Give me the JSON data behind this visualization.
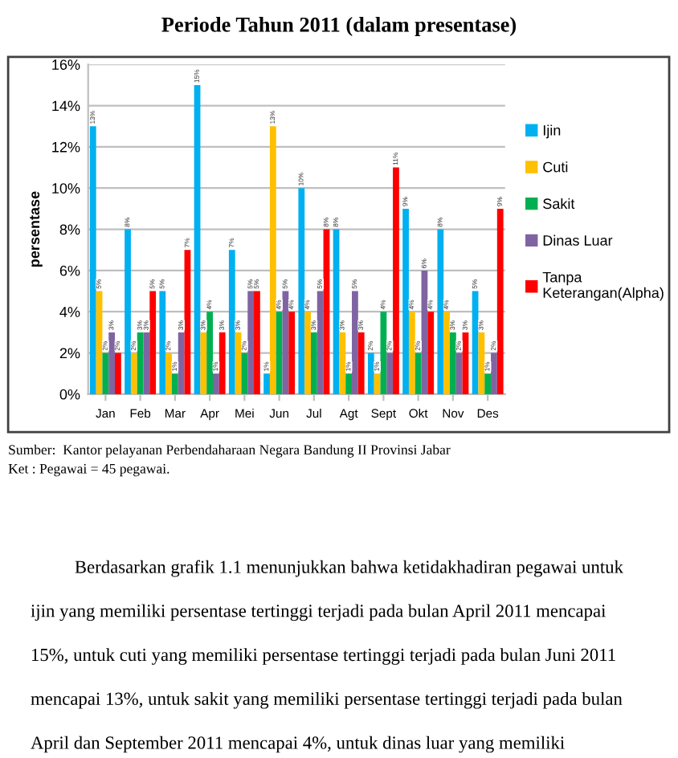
{
  "chart_data": {
    "type": "bar",
    "title": "Periode Tahun 2011 (dalam presentase)",
    "ylabel": "persentase",
    "categories": [
      "Jan",
      "Feb",
      "Mar",
      "Apr",
      "Mei",
      "Jun",
      "Jul",
      "Agt",
      "Sept",
      "Okt",
      "Nov",
      "Des"
    ],
    "series": [
      {
        "name": "Ijin",
        "color": "#00b0f0",
        "values": [
          13,
          8,
          5,
          15,
          7,
          1,
          10,
          8,
          2,
          9,
          8,
          5
        ],
        "value_labels": [
          "13%",
          "8%",
          "5%",
          "15%",
          "7%",
          "1%",
          "10%",
          "8%",
          "2%",
          "9%",
          "8%",
          "5%"
        ]
      },
      {
        "name": "Cuti",
        "color": "#ffc000",
        "values": [
          5,
          2,
          2,
          3,
          3,
          13,
          4,
          3,
          1,
          4,
          4,
          3
        ],
        "value_labels": [
          "5%",
          "2%",
          "2%",
          "3%",
          "3%",
          "13%",
          "4%",
          "3%",
          "1%",
          "4%",
          "4%",
          "3%"
        ]
      },
      {
        "name": "Sakit",
        "color": "#00b050",
        "values": [
          2,
          3,
          1,
          4,
          2,
          4,
          3,
          1,
          4,
          2,
          3,
          1
        ],
        "value_labels": [
          "2%",
          "3%",
          "1%",
          "4%",
          "2%",
          "4%",
          "3%",
          "1%",
          "4%",
          "2%",
          "3%",
          "1%"
        ]
      },
      {
        "name": "Dinas Luar",
        "color": "#8064a2",
        "values": [
          3,
          3,
          3,
          1,
          5,
          5,
          5,
          5,
          2,
          6,
          2,
          2
        ],
        "value_labels": [
          "3%",
          "3%",
          "3%",
          "1%",
          "5%",
          "5%",
          "5%",
          "5%",
          "2%",
          "6%",
          "2%",
          "2%"
        ]
      },
      {
        "name": "Tanpa\nKeterangan(Alpha)",
        "color": "#ff0000",
        "values": [
          2,
          5,
          7,
          3,
          5,
          4,
          8,
          3,
          11,
          4,
          3,
          9
        ],
        "value_labels": [
          "2%",
          "5%",
          "7%",
          "3%",
          "5%",
          "4%",
          "8%",
          "3%",
          "11%",
          "4%",
          "3%",
          "9%"
        ]
      }
    ],
    "ylim": [
      0,
      16
    ],
    "yticks": [
      {
        "value": 0,
        "label": "0%"
      },
      {
        "value": 2,
        "label": "2%"
      },
      {
        "value": 4,
        "label": "4%"
      },
      {
        "value": 6,
        "label": "6%"
      },
      {
        "value": 8,
        "label": "8%"
      },
      {
        "value": 10,
        "label": "10%"
      },
      {
        "value": 12,
        "label": "12%"
      },
      {
        "value": 14,
        "label": "14%"
      },
      {
        "value": 16,
        "label": "16%"
      }
    ],
    "grid": "y",
    "legend": "right",
    "annotations": [
      "Sumber:  Kantor pelayanan Perbendaharaan Negara Bandung II Provinsi Jabar",
      "Ket : Pegawai = 45 pegawai.",
      "Berdasarkan grafik 1.1 menunjukkan bahwa ketidakhadiran pegawai untuk",
      "ijin yang memiliki persentase tertinggi terjadi pada bulan April 2011 mencapai",
      "15%, untuk cuti yang memiliki persentase tertinggi terjadi pada bulan Juni 2011",
      "mencapai 13%, untuk sakit yang memiliki persentase tertinggi terjadi pada bulan",
      "April dan September 2011 mencapai 4%, untuk dinas luar yang memiliki"
    ]
  }
}
